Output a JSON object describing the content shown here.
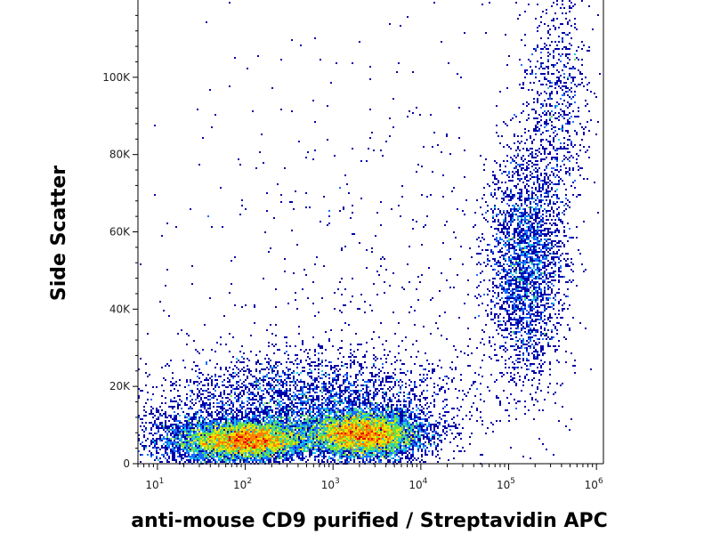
{
  "chart_data": {
    "type": "scatter",
    "subtype": "flow-cytometry density dot plot",
    "xlabel": "anti-mouse CD9 purified / Streptavidin APC",
    "ylabel": "Side Scatter",
    "x_scale": "log",
    "xlim": [
      6,
      1200000
    ],
    "ylim": [
      0,
      120000
    ],
    "x_ticks": [
      {
        "value": 10,
        "base": "10",
        "exp": "1"
      },
      {
        "value": 100,
        "base": "10",
        "exp": "2"
      },
      {
        "value": 1000,
        "base": "10",
        "exp": "3"
      },
      {
        "value": 10000,
        "base": "10",
        "exp": "4"
      },
      {
        "value": 100000,
        "base": "10",
        "exp": "5"
      },
      {
        "value": 1000000,
        "base": "10",
        "exp": "6"
      }
    ],
    "y_ticks": [
      {
        "value": 0,
        "label": "0"
      },
      {
        "value": 20000,
        "label": "20K"
      },
      {
        "value": 40000,
        "label": "40K"
      },
      {
        "value": 60000,
        "label": "60K"
      },
      {
        "value": 80000,
        "label": "80K"
      },
      {
        "value": 100000,
        "label": "100K"
      }
    ],
    "grid": false,
    "colormap": [
      "#0000aa",
      "#1a6cff",
      "#19c8e6",
      "#66e04a",
      "#f0e000",
      "#ff8000",
      "#e60000"
    ],
    "populations": [
      {
        "x_log_center": 2.05,
        "x_log_sd": 0.32,
        "y_center": 6000,
        "y_sd": 2500,
        "count": 6000
      },
      {
        "x_log_center": 3.35,
        "x_log_sd": 0.33,
        "y_center": 7500,
        "y_sd": 3000,
        "count": 7000
      },
      {
        "x_log_center": 1.5,
        "x_log_sd": 0.35,
        "y_center": 6000,
        "y_sd": 3500,
        "count": 1500
      },
      {
        "x_log_center": 2.7,
        "x_log_sd": 0.85,
        "y_center": 15000,
        "y_sd": 7000,
        "count": 3500
      },
      {
        "x_log_center": 5.2,
        "x_log_sd": 0.22,
        "y_center": 52000,
        "y_sd": 15000,
        "count": 2800
      },
      {
        "x_log_center": 5.55,
        "x_log_sd": 0.18,
        "y_center": 95000,
        "y_sd": 15000,
        "count": 700
      },
      {
        "x_log_center": 3.5,
        "x_log_sd": 1.3,
        "y_center": 50000,
        "y_sd": 35000,
        "count": 600
      }
    ]
  }
}
